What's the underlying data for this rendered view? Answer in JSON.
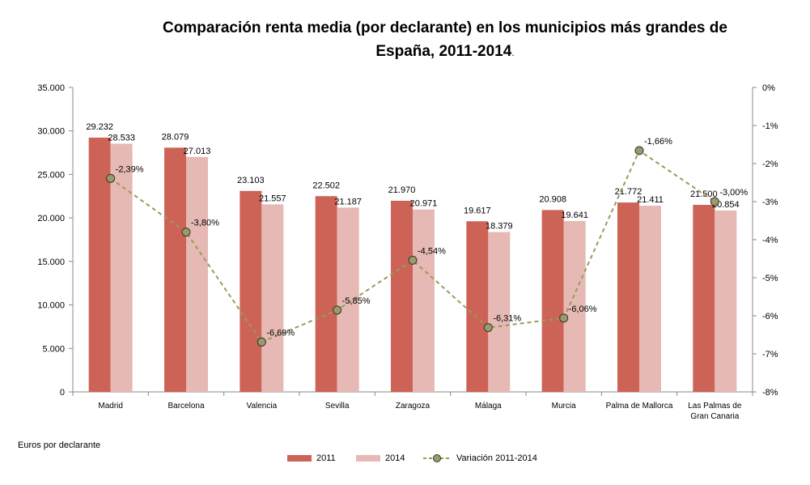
{
  "title_line1": "Comparación renta media (por declarante) en los municipios más grandes de",
  "title_line2": "España, 2011-2014",
  "title_dot": ".",
  "units_note": "Euros por declarante",
  "colors": {
    "bar2011": "#cd6356",
    "bar2014": "#e6b9b4",
    "line": "#9a9a5a",
    "marker": "#9b9b6a",
    "axis": "#888888"
  },
  "chart_data": {
    "type": "bar",
    "categories": [
      "Madrid",
      "Barcelona",
      "Valencia",
      "Sevilla",
      "Zaragoza",
      "Málaga",
      "Murcia",
      "Palma de Mallorca",
      "Las Palmas de Gran Canaria"
    ],
    "category_lines": [
      [
        "Madrid"
      ],
      [
        "Barcelona"
      ],
      [
        "Valencia"
      ],
      [
        "Sevilla"
      ],
      [
        "Zaragoza"
      ],
      [
        "Málaga"
      ],
      [
        "Murcia"
      ],
      [
        "Palma de Mallorca"
      ],
      [
        "Las Palmas de",
        "Gran Canaria"
      ]
    ],
    "series": [
      {
        "name": "2011",
        "values": [
          29232,
          28079,
          23103,
          22502,
          21970,
          19617,
          20908,
          21772,
          21500
        ],
        "labels": [
          "29.232",
          "28.079",
          "23.103",
          "22.502",
          "21.970",
          "19.617",
          "20.908",
          "21.772",
          "21.500"
        ]
      },
      {
        "name": "2014",
        "values": [
          28533,
          27013,
          21557,
          21187,
          20971,
          18379,
          19641,
          21411,
          20854
        ],
        "labels": [
          "28.533",
          "27.013",
          "21.557",
          "21.187",
          "20.971",
          "18.379",
          "19.641",
          "21.411",
          "20.854"
        ]
      },
      {
        "name": "Variación 2011-2014",
        "type": "line",
        "axis": "right",
        "values": [
          -2.39,
          -3.8,
          -6.69,
          -5.85,
          -4.54,
          -6.31,
          -6.06,
          -1.66,
          -3.0
        ],
        "labels": [
          "-2,39%",
          "-3,80%",
          "-6,69%",
          "-5,85%",
          "-4,54%",
          "-6,31%",
          "-6,06%",
          "-1,66%",
          "-3,00%"
        ]
      }
    ],
    "ylim": [
      0,
      35000
    ],
    "yticks": [
      "0",
      "5.000",
      "10.000",
      "15.000",
      "20.000",
      "25.000",
      "30.000",
      "35.000"
    ],
    "y2lim": [
      -8,
      0
    ],
    "y2ticks": [
      "0%",
      "-1%",
      "-2%",
      "-3%",
      "-4%",
      "-5%",
      "-6%",
      "-7%",
      "-8%"
    ],
    "grid": false,
    "legend_position": "bottom"
  }
}
